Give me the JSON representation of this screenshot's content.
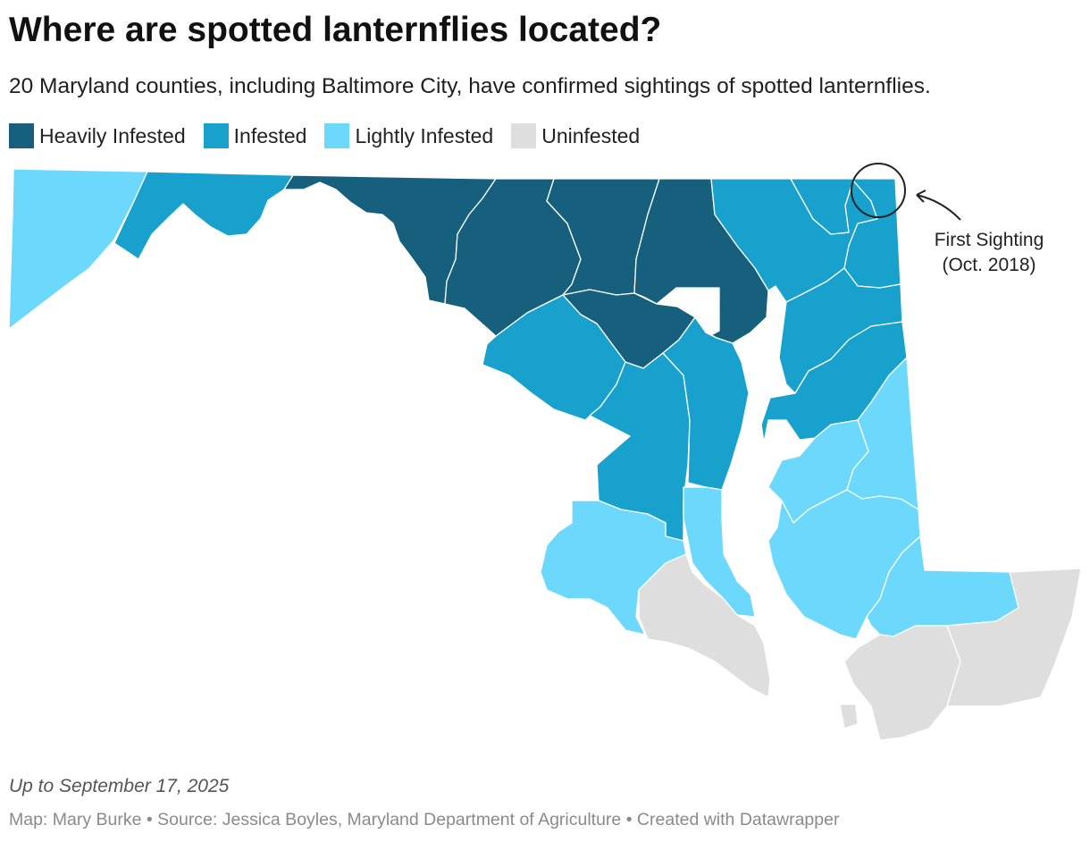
{
  "title": "Where are spotted lanternflies located?",
  "subtitle": "20 Maryland counties, including Baltimore City, have confirmed sightings of spotted lanternflies.",
  "legend": [
    {
      "label": "Heavily Infested",
      "color": "#16607d"
    },
    {
      "label": "Infested",
      "color": "#19a1ce"
    },
    {
      "label": "Lightly Infested",
      "color": "#6cd8fc"
    },
    {
      "label": "Uninfested",
      "color": "#dedede"
    }
  ],
  "annotation": {
    "line1": "First Sighting",
    "line2": "(Oct. 2018)"
  },
  "notes": "Up to September 17, 2025",
  "byline": "Map: Mary Burke • Source: Jessica Boyles, Maryland Department of Agriculture • Created with Datawrapper"
}
